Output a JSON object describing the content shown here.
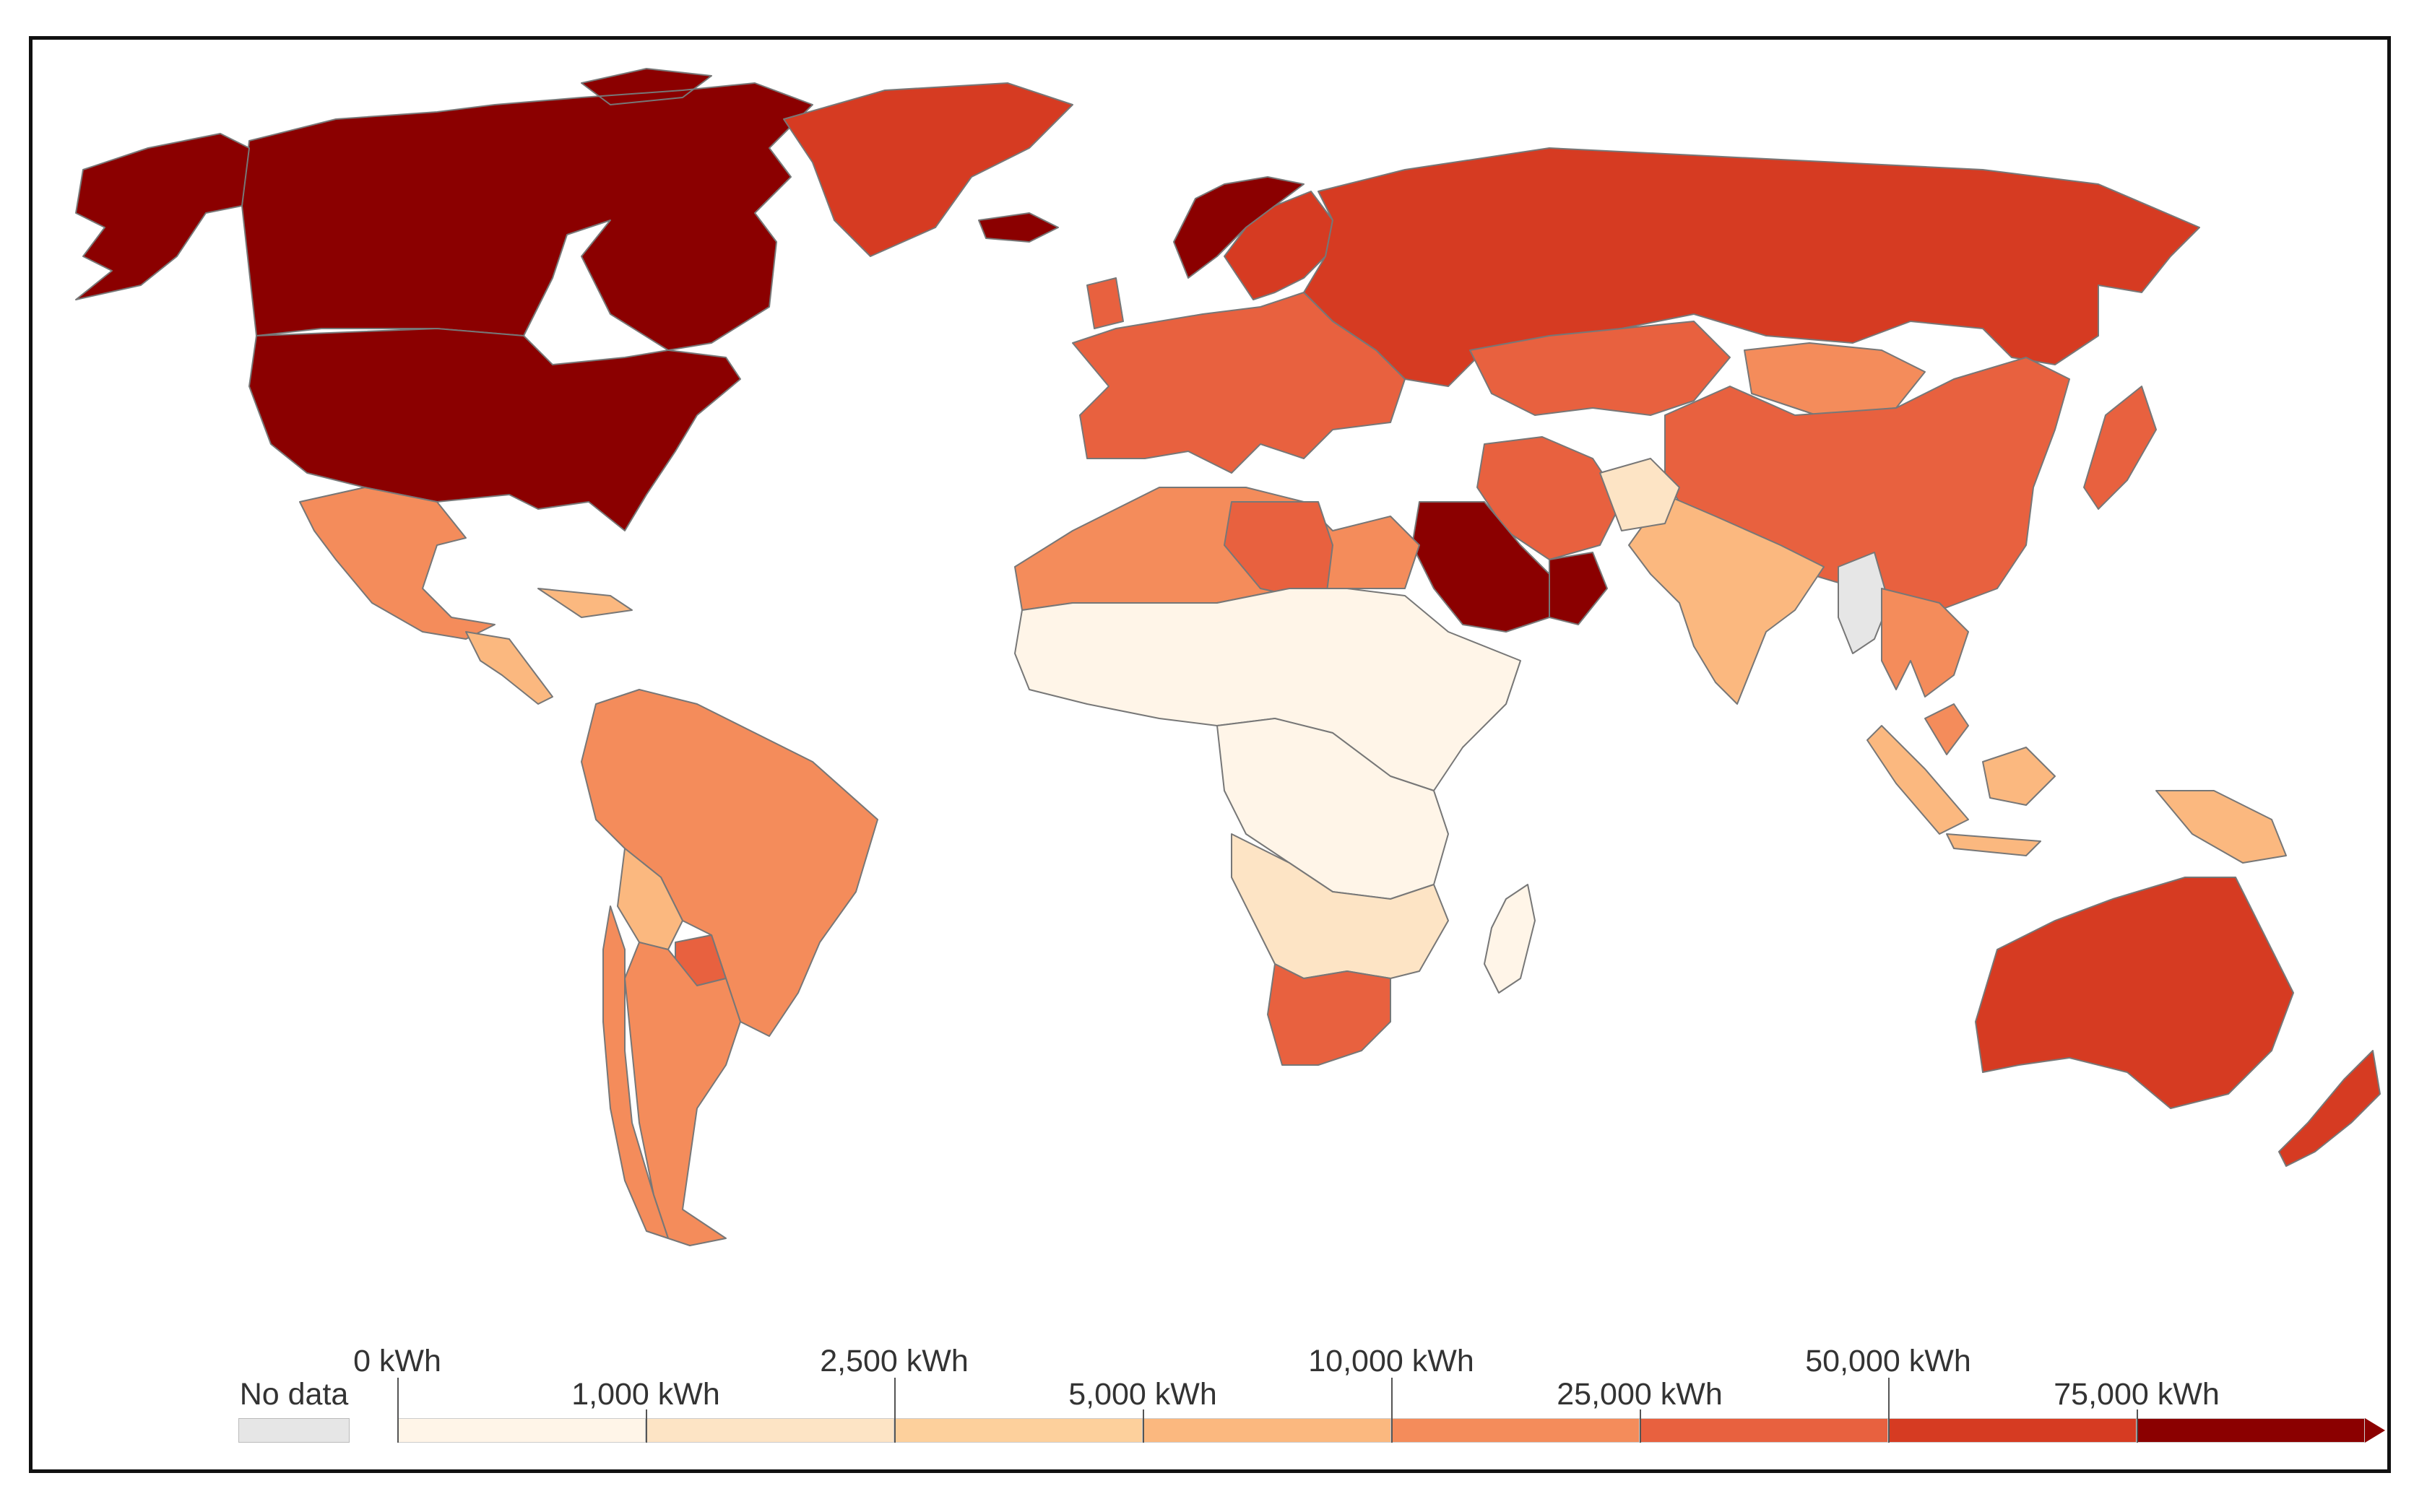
{
  "map": {
    "regions": [
      {
        "name": "Canada",
        "color": "#8b0000",
        "level": "75,000 kWh+"
      },
      {
        "name": "United States",
        "color": "#8b0000",
        "level": "75,000 kWh+"
      },
      {
        "name": "Alaska",
        "color": "#8b0000",
        "level": "75,000 kWh+"
      },
      {
        "name": "Greenland",
        "color": "#d63b22",
        "level": "50,000–75,000 kWh"
      },
      {
        "name": "Iceland",
        "color": "#8b0000",
        "level": "75,000 kWh+"
      },
      {
        "name": "Norway",
        "color": "#8b0000",
        "level": "75,000 kWh+"
      },
      {
        "name": "Sweden/Finland",
        "color": "#d63b22",
        "level": "50,000–75,000 kWh"
      },
      {
        "name": "Russia",
        "color": "#d63b22",
        "level": "50,000–75,000 kWh"
      },
      {
        "name": "Europe",
        "color": "#e8613f",
        "level": "25,000–50,000 kWh"
      },
      {
        "name": "Kazakhstan",
        "color": "#e8613f",
        "level": "25,000–50,000 kWh"
      },
      {
        "name": "Mongolia",
        "color": "#f48c5b",
        "level": "10,000–25,000 kWh"
      },
      {
        "name": "China",
        "color": "#e8613f",
        "level": "25,000–50,000 kWh"
      },
      {
        "name": "Japan",
        "color": "#e8613f",
        "level": "25,000–50,000 kWh"
      },
      {
        "name": "Iran",
        "color": "#e8613f",
        "level": "25,000–50,000 kWh"
      },
      {
        "name": "Saudi Arabia",
        "color": "#8b0000",
        "level": "75,000 kWh+"
      },
      {
        "name": "Oman",
        "color": "#8b0000",
        "level": "75,000 kWh+"
      },
      {
        "name": "India",
        "color": "#fbb87f",
        "level": "5,000–10,000 kWh"
      },
      {
        "name": "Afghanistan",
        "color": "#fde4c5",
        "level": "1,000–2,500 kWh"
      },
      {
        "name": "Myanmar",
        "color": "#e6e6e6",
        "level": "No data"
      },
      {
        "name": "Southeast Asia",
        "color": "#f48c5b",
        "level": "10,000–25,000 kWh"
      },
      {
        "name": "Indonesia",
        "color": "#fbb87f",
        "level": "5,000–10,000 kWh"
      },
      {
        "name": "Australia",
        "color": "#d63b22",
        "level": "50,000–75,000 kWh"
      },
      {
        "name": "New Zealand",
        "color": "#d63b22",
        "level": "50,000–75,000 kWh"
      },
      {
        "name": "Mexico",
        "color": "#f48c5b",
        "level": "10,000–25,000 kWh"
      },
      {
        "name": "Central America",
        "color": "#fbb87f",
        "level": "5,000–10,000 kWh"
      },
      {
        "name": "Brazil",
        "color": "#f48c5b",
        "level": "10,000–25,000 kWh"
      },
      {
        "name": "Bolivia",
        "color": "#fbb87f",
        "level": "5,000–10,000 kWh"
      },
      {
        "name": "Paraguay",
        "color": "#e8613f",
        "level": "25,000–50,000 kWh"
      },
      {
        "name": "Argentina",
        "color": "#f48c5b",
        "level": "10,000–25,000 kWh"
      },
      {
        "name": "Chile",
        "color": "#f48c5b",
        "level": "10,000–25,000 kWh"
      },
      {
        "name": "North Africa",
        "color": "#f48c5b",
        "level": "10,000–25,000 kWh"
      },
      {
        "name": "Libya",
        "color": "#e8613f",
        "level": "25,000–50,000 kWh"
      },
      {
        "name": "Sahel",
        "color": "#fff5e8",
        "level": "0–1,000 kWh"
      },
      {
        "name": "Central Africa",
        "color": "#fff5e8",
        "level": "0–1,000 kWh"
      },
      {
        "name": "Southern Africa",
        "color": "#fde4c5",
        "level": "1,000–2,500 kWh"
      },
      {
        "name": "South Africa",
        "color": "#e8613f",
        "level": "25,000–50,000 kWh"
      },
      {
        "name": "Madagascar",
        "color": "#fff5e8",
        "level": "0–1,000 kWh"
      }
    ]
  },
  "legend": {
    "no_data_label": "No data",
    "no_data_color": "#e6e6e6",
    "labels": [
      "0 kWh",
      "1,000 kWh",
      "2,500 kWh",
      "5,000 kWh",
      "10,000 kWh",
      "25,000 kWh",
      "50,000 kWh",
      "75,000 kWh"
    ],
    "colors": [
      "#fff5e8",
      "#fde4c5",
      "#fdd09c",
      "#fbb87f",
      "#f48c5b",
      "#e8613f",
      "#d63b22",
      "#8b0000"
    ]
  }
}
